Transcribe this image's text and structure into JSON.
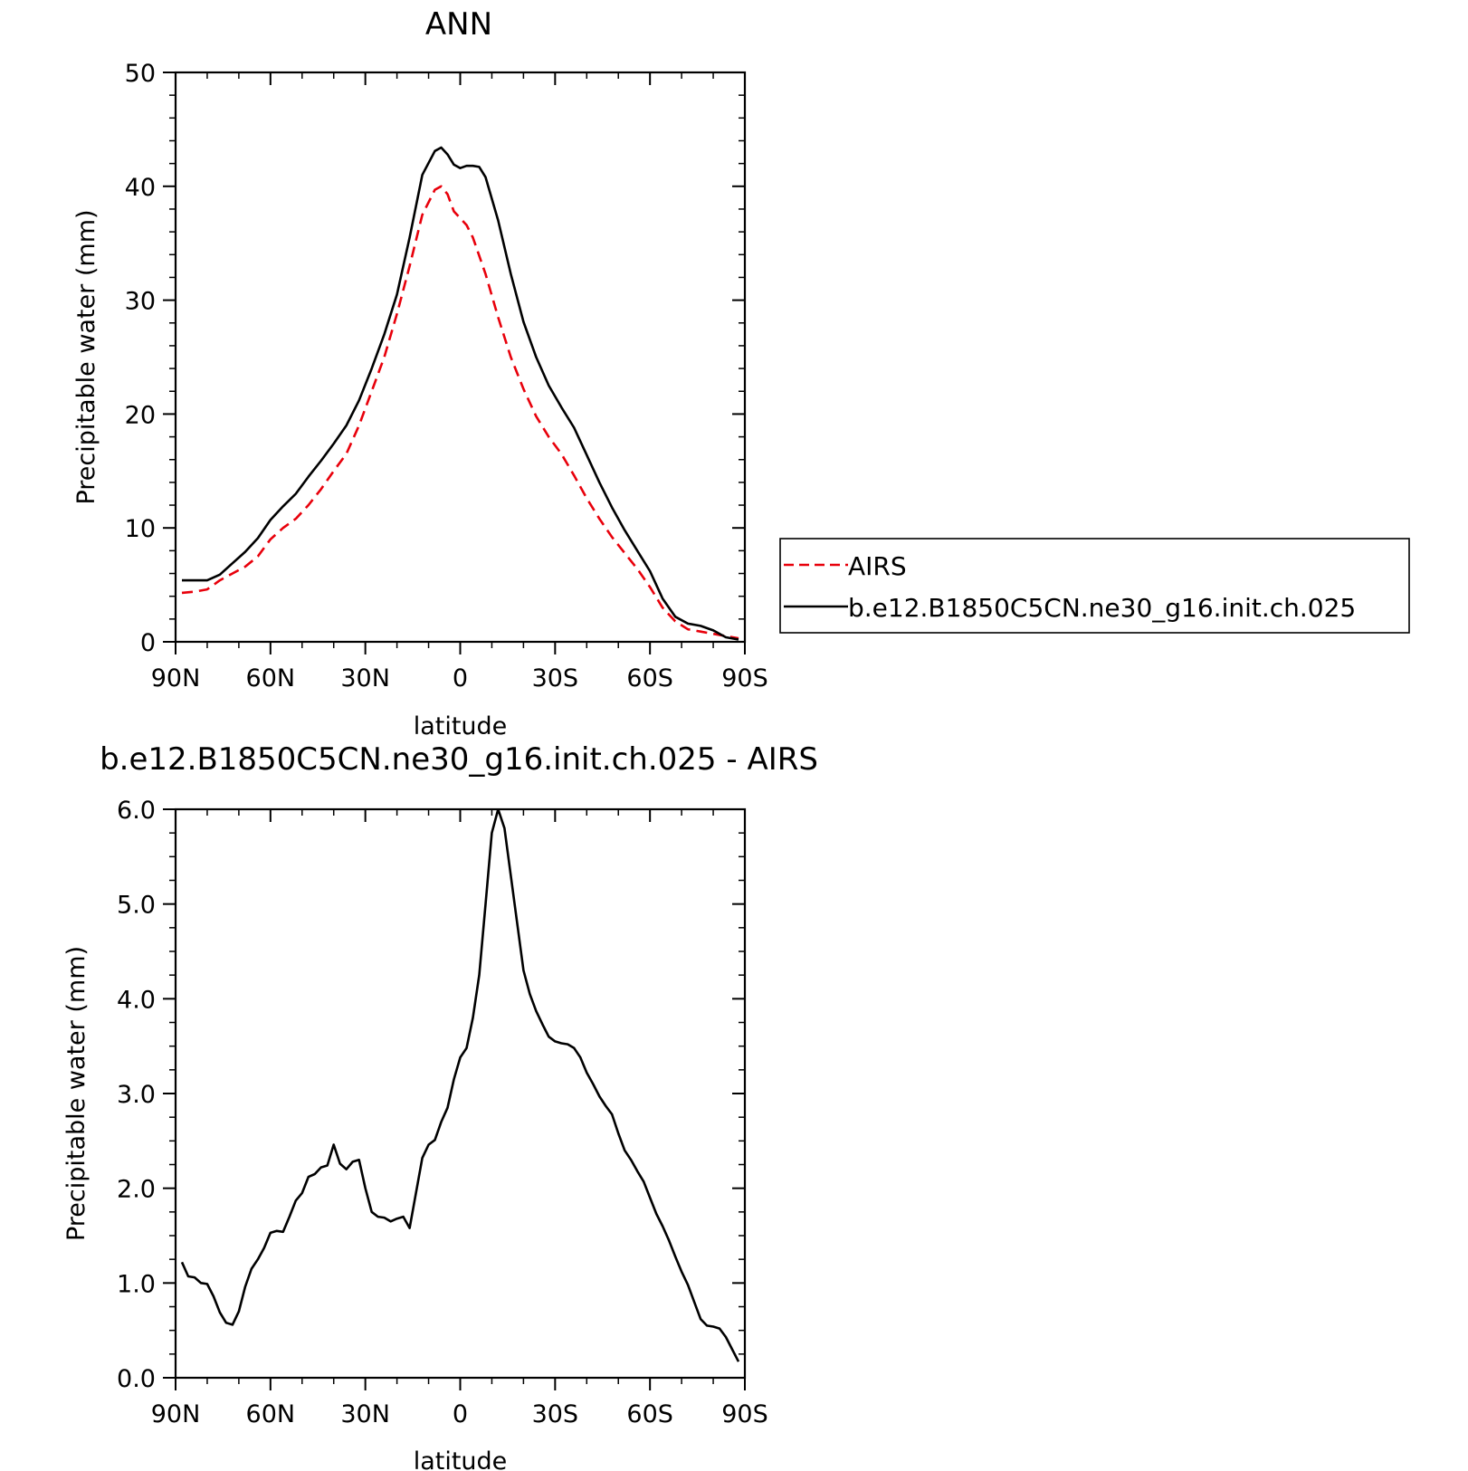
{
  "chart_data": [
    {
      "type": "line",
      "title": "ANN",
      "xlabel": "latitude",
      "ylabel": "Precipitable water (mm)",
      "xlim": [
        90,
        -90
      ],
      "ylim": [
        0,
        50
      ],
      "x_ticks": [
        90,
        60,
        30,
        0,
        -30,
        -60,
        -90
      ],
      "x_tick_labels": [
        "90N",
        "60N",
        "30N",
        "0",
        "30S",
        "60S",
        "90S"
      ],
      "y_ticks": [
        0,
        10,
        20,
        30,
        40,
        50
      ],
      "y_tick_labels": [
        "0",
        "10",
        "20",
        "30",
        "40",
        "50"
      ],
      "legend_position": "right",
      "series": [
        {
          "name": "AIRS",
          "color": "#e8000b",
          "style": "dashed",
          "x": [
            88,
            84,
            80,
            76,
            72,
            68,
            64,
            60,
            56,
            52,
            48,
            44,
            40,
            36,
            32,
            28,
            24,
            20,
            16,
            12,
            8,
            6,
            4,
            2,
            0,
            -2,
            -4,
            -8,
            -12,
            -16,
            -20,
            -24,
            -28,
            -32,
            -36,
            -40,
            -44,
            -48,
            -52,
            -56,
            -60,
            -64,
            -68,
            -72,
            -76,
            -80,
            -84,
            -88
          ],
          "values": [
            4.3,
            4.4,
            4.6,
            5.4,
            6.0,
            6.6,
            7.5,
            9.0,
            10.0,
            10.8,
            12.0,
            13.4,
            15.0,
            16.5,
            19.0,
            22.0,
            25.0,
            28.8,
            33.0,
            37.5,
            39.7,
            40.0,
            39.3,
            37.8,
            37.2,
            36.6,
            35.5,
            32.3,
            28.5,
            25.0,
            22.2,
            19.8,
            18.0,
            16.5,
            14.6,
            12.6,
            10.8,
            9.2,
            7.8,
            6.4,
            4.8,
            3.0,
            1.8,
            1.1,
            0.9,
            0.7,
            0.5,
            0.3
          ]
        },
        {
          "name": "b.e12.B1850C5CN.ne30_g16.init.ch.025",
          "color": "#000000",
          "style": "solid",
          "x": [
            88,
            84,
            80,
            76,
            72,
            68,
            64,
            60,
            56,
            52,
            48,
            44,
            40,
            36,
            32,
            28,
            24,
            20,
            16,
            12,
            8,
            6,
            4,
            2,
            0,
            -2,
            -4,
            -6,
            -8,
            -12,
            -16,
            -20,
            -24,
            -28,
            -32,
            -36,
            -40,
            -44,
            -48,
            -52,
            -56,
            -60,
            -64,
            -68,
            -72,
            -76,
            -80,
            -84,
            -88
          ],
          "values": [
            5.4,
            5.4,
            5.4,
            5.9,
            6.9,
            7.9,
            9.1,
            10.7,
            11.9,
            13.0,
            14.5,
            15.9,
            17.4,
            19.0,
            21.2,
            24.0,
            27.0,
            30.5,
            35.5,
            41.0,
            43.1,
            43.4,
            42.8,
            41.9,
            41.6,
            41.8,
            41.8,
            41.7,
            40.8,
            37.0,
            32.3,
            28.1,
            25.0,
            22.5,
            20.6,
            18.8,
            16.4,
            14.0,
            11.8,
            9.8,
            8.0,
            6.2,
            3.8,
            2.2,
            1.6,
            1.4,
            1.0,
            0.4,
            0.2
          ]
        }
      ]
    },
    {
      "type": "line",
      "title": "b.e12.B1850C5CN.ne30_g16.init.ch.025 - AIRS",
      "xlabel": "latitude",
      "ylabel": "Precipitable water (mm)",
      "xlim": [
        90,
        -90
      ],
      "ylim": [
        0,
        6
      ],
      "x_ticks": [
        90,
        60,
        30,
        0,
        -30,
        -60,
        -90
      ],
      "x_tick_labels": [
        "90N",
        "60N",
        "30N",
        "0",
        "30S",
        "60S",
        "90S"
      ],
      "y_ticks": [
        0,
        1,
        2,
        3,
        4,
        5,
        6
      ],
      "y_tick_labels": [
        "0.0",
        "1.0",
        "2.0",
        "3.0",
        "4.0",
        "5.0",
        "6.0"
      ],
      "series": [
        {
          "color": "#000000",
          "style": "solid",
          "x": [
            88,
            86,
            84,
            82,
            80,
            78,
            76,
            74,
            72,
            70,
            68,
            66,
            64,
            62,
            60,
            58,
            56,
            54,
            52,
            50,
            48,
            46,
            44,
            42,
            40,
            38,
            36,
            34,
            32,
            30,
            28,
            26,
            24,
            22,
            20,
            18,
            16,
            14,
            12,
            10,
            8,
            6,
            4,
            2,
            0,
            -2,
            -4,
            -6,
            -8,
            -10,
            -12,
            -14,
            -16,
            -18,
            -20,
            -22,
            -24,
            -26,
            -28,
            -30,
            -32,
            -34,
            -36,
            -38,
            -40,
            -42,
            -44,
            -46,
            -48,
            -50,
            -52,
            -54,
            -56,
            -58,
            -60,
            -62,
            -64,
            -66,
            -68,
            -70,
            -72,
            -74,
            -76,
            -78,
            -80,
            -82,
            -84,
            -86,
            -88
          ],
          "values": [
            1.22,
            1.07,
            1.06,
            1.0,
            0.99,
            0.86,
            0.69,
            0.58,
            0.56,
            0.7,
            0.96,
            1.15,
            1.25,
            1.37,
            1.53,
            1.55,
            1.54,
            1.7,
            1.87,
            1.95,
            2.12,
            2.15,
            2.22,
            2.24,
            2.46,
            2.26,
            2.2,
            2.28,
            2.3,
            2.0,
            1.75,
            1.7,
            1.69,
            1.65,
            1.68,
            1.7,
            1.58,
            1.95,
            2.32,
            2.46,
            2.51,
            2.7,
            2.85,
            3.15,
            3.38,
            3.48,
            3.8,
            4.25,
            5.0,
            5.75,
            6.0,
            5.8,
            5.3,
            4.8,
            4.3,
            4.05,
            3.87,
            3.73,
            3.6,
            3.55,
            3.53,
            3.52,
            3.48,
            3.38,
            3.22,
            3.1,
            2.97,
            2.87,
            2.78,
            2.58,
            2.4,
            2.3,
            2.18,
            2.07,
            1.9,
            1.73,
            1.6,
            1.45,
            1.28,
            1.12,
            0.98,
            0.8,
            0.62,
            0.55,
            0.54,
            0.52,
            0.43,
            0.3,
            0.17
          ]
        }
      ]
    }
  ]
}
